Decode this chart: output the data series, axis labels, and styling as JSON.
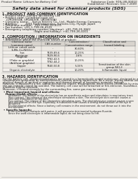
{
  "bg_color": "#f0ede8",
  "header_left": "Product Name: Lithium Ion Battery Cell",
  "header_right_line1": "Substance Code: SDS-LIB-00010",
  "header_right_line2": "Established / Revision: Dec.7.2009",
  "title": "Safety data sheet for chemical products (SDS)",
  "section1_title": "1. PRODUCT AND COMPANY IDENTIFICATION",
  "section1_lines": [
    "• Product name: Lithium Ion Battery Cell",
    "• Product code: Cylindrical-type cell",
    "    (UR18650A, UR18650E, UR18650A)",
    "• Company name:    Sanyo Electric Co., Ltd., Mobile Energy Company",
    "• Address:         2001 Kamitakamatsu, Sumoto-City, Hyogo, Japan",
    "• Telephone number:  +81-(799)-20-4111",
    "• Fax number: +81-1-799-26-4120",
    "• Emergency telephone number (daytime): +81-799-20-3842",
    "                                    (Night and holiday): +81-799-26-4101"
  ],
  "section2_title": "2. COMPOSITION / INFORMATION ON INGREDIENTS",
  "section2_intro": "• Substance or preparation: Preparation",
  "section2_sub": "• Information about the chemical nature of product:",
  "table_headers": [
    "Chemical name\n(common name)",
    "CAS number",
    "Concentration /\nConcentration range",
    "Classification and\nhazard labeling"
  ],
  "table_rows": [
    [
      "Lithium cobalt oxide\n(LiMn-Co-NiO2x)",
      "-",
      "30-60%",
      "-"
    ],
    [
      "Iron",
      "7439-89-6",
      "10-25%",
      "-"
    ],
    [
      "Aluminum",
      "7429-90-5",
      "2-6%",
      "-"
    ],
    [
      "Graphite\n(Flake or graphite)\n(Artificial graphite)",
      "7782-42-5\n7782-44-2",
      "10-25%",
      "-"
    ],
    [
      "Copper",
      "7440-50-8",
      "5-15%",
      "Sensitization of the skin\ngroup R42,2"
    ],
    [
      "Organic electrolyte",
      "-",
      "10-20%",
      "Inflammable liquid"
    ]
  ],
  "section3_title": "3. HAZARDS IDENTIFICATION",
  "section3_text": [
    "For the battery cell, chemical substances are stored in a hermetically sealed metal case, designed to withstand",
    "temperatures generated by electrochemical reaction during normal use. As a result, during normal use, there is no",
    "physical danger of ignition or explosion and thermal danger of hazardous materials leakage.",
    "However, if exposed to a fire, added mechanical shocks, decomposed, when electro-chemicals by misuse,",
    "the gas leakage cannot be avoided. The battery cell case will be breached or fire-emission, hazardous",
    "materials may be released.",
    "Moreover, if heated strongly by the surrounding fire, some gas may be emitted."
  ],
  "section3_important": "• Most important hazard and effects:",
  "section3_human": "Human health effects:",
  "section3_human_lines": [
    "Inhalation: The release of the electrolyte has an anesthesia action and stimulates in respiratory tract.",
    "Skin contact: The release of the electrolyte stimulates a skin. The electrolyte skin contact causes a",
    "sore and stimulation on the skin.",
    "Eye contact: The release of the electrolyte stimulates eyes. The electrolyte eye contact causes a sore",
    "and stimulation on the eye. Especially, a substance that causes a strong inflammation of the eye is",
    "contained.",
    "Environmental effects: Since a battery cell remains in the environment, do not throw out it into the",
    "environment."
  ],
  "section3_specific": "• Specific hazards:",
  "section3_specific_lines": [
    "If the electrolyte contacts with water, it will generate detrimental hydrogen fluoride.",
    "Since the used electrolyte is inflammable liquid, do not bring close to fire."
  ],
  "text_color": "#1a1a1a",
  "table_line_color": "#888888",
  "line_color": "#aaaaaa"
}
